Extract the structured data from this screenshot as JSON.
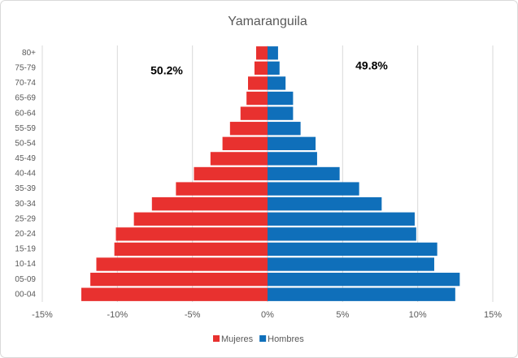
{
  "chart_data": {
    "type": "pyramid",
    "title": "Yamaranguila",
    "categories": [
      "80+",
      "75-79",
      "70-74",
      "65-69",
      "60-64",
      "55-59",
      "50-54",
      "45-49",
      "40-44",
      "35-39",
      "30-34",
      "25-29",
      "20-24",
      "15-19",
      "10-14",
      "05-09",
      "00-04"
    ],
    "series": [
      {
        "name": "Mujeres",
        "color": "#e8312f",
        "values": [
          -0.76,
          -0.87,
          -1.3,
          -1.4,
          -1.8,
          -2.5,
          -3.0,
          -3.8,
          -4.9,
          -6.1,
          -7.7,
          -8.9,
          -10.1,
          -10.2,
          -11.4,
          -11.8,
          -12.4
        ]
      },
      {
        "name": "Hombres",
        "color": "#0f6fba",
        "values": [
          0.7,
          0.8,
          1.2,
          1.7,
          1.7,
          2.2,
          3.2,
          3.3,
          4.8,
          6.1,
          7.6,
          9.8,
          9.9,
          11.3,
          11.1,
          12.8,
          12.5
        ]
      }
    ],
    "annotations": [
      "50.2%",
      "49.8%"
    ],
    "xlim": [
      -15,
      15
    ],
    "xticks": [
      {
        "value": -15,
        "label": "-15%"
      },
      {
        "value": -10,
        "label": "-10%"
      },
      {
        "value": -5,
        "label": "-5%"
      },
      {
        "value": 0,
        "label": "0%"
      },
      {
        "value": 5,
        "label": "5%"
      },
      {
        "value": 10,
        "label": "10%"
      },
      {
        "value": 15,
        "label": "15%"
      }
    ],
    "grid": true,
    "legend": "bottom"
  }
}
